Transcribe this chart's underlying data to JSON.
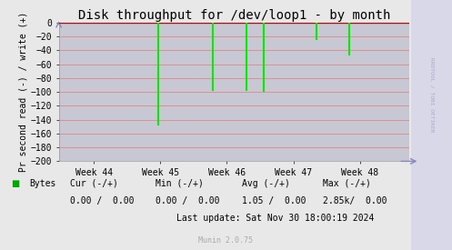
{
  "title": "Disk throughput for /dev/loop1 - by month",
  "ylabel": "Pr second read (-) / write (+)",
  "background_color": "#e8e8e8",
  "plot_bg_color": "#c8c8d4",
  "grid_color": "#e08080",
  "right_strip_color": "#d8d8e8",
  "ylim": [
    -200,
    0
  ],
  "yticks": [
    0,
    -20,
    -40,
    -60,
    -80,
    -100,
    -120,
    -140,
    -160,
    -180,
    -200
  ],
  "xtick_labels": [
    "Week 44",
    "Week 45",
    "Week 46",
    "Week 47",
    "Week 48"
  ],
  "line_color": "#00ee00",
  "zero_line_color": "#cc0000",
  "spike_x": [
    0.285,
    0.44,
    0.535,
    0.585,
    0.735,
    0.83
  ],
  "spike_y": [
    -148,
    -98,
    -98,
    -100,
    -25,
    -48
  ],
  "legend_label": "Bytes",
  "legend_color": "#00aa00",
  "cur_label": "Cur (-/+)",
  "min_label": "Min (-/+)",
  "avg_label": "Avg (-/+)",
  "max_label": "Max (-/+)",
  "cur_val": "0.00 /  0.00",
  "min_val": "0.00 /  0.00",
  "avg_val": "1.05 /  0.00",
  "max_val": "2.85k/  0.00",
  "last_update": "Last update: Sat Nov 30 18:00:19 2024",
  "munin_version": "Munin 2.0.75",
  "rrdtool_label": "RRDTOOL / TOBI OETIKER",
  "title_fontsize": 10,
  "axis_fontsize": 7,
  "tick_fontsize": 7,
  "footer_fontsize": 7
}
